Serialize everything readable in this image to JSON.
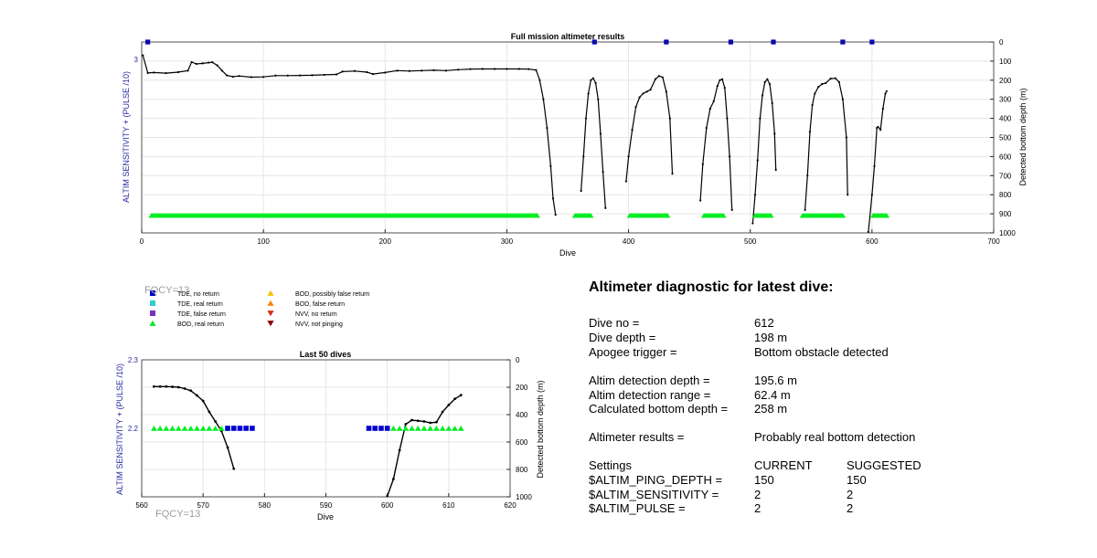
{
  "colors": {
    "blue": "#0000cc",
    "cyan": "#33cccc",
    "purple": "#7b2fbe",
    "green": "#00ee22",
    "yellow": "#f2c500",
    "orange": "#f28a00",
    "red": "#d92b1a",
    "darkred": "#8b0000",
    "line": "#000000",
    "axis": "#2929a3",
    "grid": "#e6e6e6",
    "fqcy": "#9b9b9b"
  },
  "fqcy_top": "FQCY=13",
  "fqcy_bottom": "FQCY=13",
  "legend": [
    {
      "label": "TDE, no return",
      "marker": "square",
      "color": "#0000cc"
    },
    {
      "label": "TDE, real return",
      "marker": "square",
      "color": "#33cccc"
    },
    {
      "label": "TDE, false return",
      "marker": "square",
      "color": "#7b2fbe"
    },
    {
      "label": "BOD, real return",
      "marker": "triangle-up",
      "color": "#00ee22"
    },
    {
      "label": "BOD, possibly false return",
      "marker": "triangle-up",
      "color": "#f2c500"
    },
    {
      "label": "BOD, false return",
      "marker": "triangle-up",
      "color": "#f28a00"
    },
    {
      "label": "NVV, no return",
      "marker": "triangle-down",
      "color": "#d92b1a"
    },
    {
      "label": "NVV, not pinging",
      "marker": "triangle-down",
      "color": "#8b0000"
    }
  ],
  "chart_data": [
    {
      "type": "line",
      "title": "Full mission altimeter results",
      "xlabel": "Dive",
      "ylabel_left": "ALTIM SENSITIVITY + (PULSE /10)",
      "ylabel_right": "Detected bottom depth (m)",
      "xlim": [
        0,
        700
      ],
      "x_ticks": [
        0,
        100,
        200,
        300,
        400,
        500,
        600,
        700
      ],
      "ylim_left": [
        2,
        3.1
      ],
      "y_ticks_left": [
        3
      ],
      "ylim_right": [
        1000,
        0
      ],
      "y_ticks_right": [
        0,
        100,
        200,
        300,
        400,
        500,
        600,
        700,
        800,
        900,
        1000
      ],
      "grid": true,
      "series": [
        {
          "axis": "right",
          "segments": [
            [
              [
                1,
                70
              ],
              [
                5,
                162
              ],
              [
                10,
                160
              ],
              [
                20,
                163
              ],
              [
                30,
                158
              ],
              [
                38,
                150
              ],
              [
                41,
                105
              ],
              [
                45,
                115
              ],
              [
                50,
                112
              ],
              [
                55,
                108
              ],
              [
                58,
                106
              ],
              [
                62,
                122
              ],
              [
                66,
                150
              ],
              [
                70,
                175
              ],
              [
                75,
                182
              ],
              [
                80,
                178
              ],
              [
                90,
                184
              ],
              [
                100,
                183
              ],
              [
                110,
                176
              ],
              [
                120,
                176
              ],
              [
                130,
                175
              ],
              [
                140,
                174
              ],
              [
                150,
                172
              ],
              [
                160,
                170
              ],
              [
                165,
                155
              ],
              [
                175,
                152
              ],
              [
                185,
                158
              ],
              [
                190,
                168
              ],
              [
                200,
                160
              ],
              [
                210,
                150
              ],
              [
                220,
                152
              ],
              [
                230,
                150
              ],
              [
                240,
                148
              ],
              [
                250,
                150
              ],
              [
                260,
                145
              ],
              [
                270,
                142
              ],
              [
                280,
                141
              ],
              [
                290,
                141
              ],
              [
                300,
                141
              ],
              [
                310,
                141
              ],
              [
                318,
                142
              ],
              [
                324,
                147
              ],
              [
                327,
                200
              ],
              [
                330,
                300
              ],
              [
                333,
                450
              ],
              [
                336,
                650
              ],
              [
                338,
                820
              ],
              [
                340,
                905
              ]
            ],
            [
              [
                361,
                780
              ],
              [
                363,
                600
              ],
              [
                365,
                400
              ],
              [
                367,
                270
              ],
              [
                369,
                200
              ],
              [
                371,
                190
              ],
              [
                373,
                215
              ],
              [
                375,
                300
              ],
              [
                377,
                480
              ],
              [
                379,
                680
              ],
              [
                381,
                870
              ]
            ],
            [
              [
                398,
                730
              ],
              [
                400,
                600
              ],
              [
                403,
                460
              ],
              [
                406,
                340
              ],
              [
                409,
                290
              ],
              [
                412,
                270
              ],
              [
                415,
                260
              ],
              [
                418,
                250
              ],
              [
                422,
                195
              ],
              [
                425,
                178
              ],
              [
                428,
                185
              ],
              [
                431,
                260
              ],
              [
                434,
                400
              ],
              [
                436,
                690
              ]
            ],
            [
              [
                459,
                830
              ],
              [
                461,
                640
              ],
              [
                464,
                450
              ],
              [
                467,
                350
              ],
              [
                470,
                310
              ],
              [
                473,
                230
              ],
              [
                475,
                200
              ],
              [
                477,
                195
              ],
              [
                479,
                240
              ],
              [
                481,
                400
              ],
              [
                483,
                600
              ],
              [
                485,
                880
              ]
            ],
            [
              [
                502,
                950
              ],
              [
                504,
                800
              ],
              [
                506,
                620
              ],
              [
                508,
                400
              ],
              [
                510,
                280
              ],
              [
                512,
                210
              ],
              [
                514,
                195
              ],
              [
                516,
                220
              ],
              [
                518,
                320
              ],
              [
                520,
                480
              ],
              [
                521,
                670
              ]
            ],
            [
              [
                545,
                880
              ],
              [
                547,
                700
              ],
              [
                549,
                470
              ],
              [
                551,
                330
              ],
              [
                553,
                270
              ],
              [
                556,
                235
              ],
              [
                559,
                220
              ],
              [
                562,
                215
              ],
              [
                566,
                192
              ],
              [
                570,
                190
              ],
              [
                573,
                210
              ],
              [
                576,
                300
              ],
              [
                579,
                500
              ],
              [
                580,
                800
              ]
            ],
            [
              [
                597,
                995
              ],
              [
                600,
                800
              ],
              [
                602,
                650
              ],
              [
                604,
                450
              ],
              [
                605,
                445
              ],
              [
                607,
                460
              ],
              [
                609,
                350
              ],
              [
                611,
                270
              ],
              [
                612,
                258
              ]
            ]
          ]
        }
      ],
      "markers": [
        {
          "series": "TDE, no return",
          "x": [
            5,
            372,
            431,
            484,
            519,
            576,
            600
          ],
          "y": 3.1
        },
        {
          "series": "BOD, real return",
          "x_ranges": [
            [
              8,
              325
            ],
            [
              356,
              369
            ],
            [
              401,
              432
            ],
            [
              462,
              478
            ],
            [
              504,
              517
            ],
            [
              543,
              576
            ],
            [
              601,
              612
            ]
          ],
          "y": 2.1
        }
      ]
    },
    {
      "type": "line",
      "title": "Last 50 dives",
      "xlabel": "Dive",
      "ylabel_left": "ALTIM SENSITIVITY + (PULSE /10)",
      "ylabel_right": "Detected bottom depth (m)",
      "xlim": [
        560,
        620
      ],
      "x_ticks": [
        560,
        570,
        580,
        590,
        600,
        610,
        620
      ],
      "ylim_left": [
        2.1,
        2.3
      ],
      "y_ticks_left": [
        2.2,
        2.3
      ],
      "ylim_right": [
        1000,
        0
      ],
      "y_ticks_right": [
        0,
        200,
        400,
        600,
        800,
        1000
      ],
      "grid": true,
      "series": [
        {
          "axis": "right",
          "segments": [
            [
              [
                562,
                195
              ],
              [
                563,
                195
              ],
              [
                564,
                195
              ],
              [
                565,
                197
              ],
              [
                566,
                200
              ],
              [
                567,
                210
              ],
              [
                568,
                225
              ],
              [
                569,
                260
              ],
              [
                570,
                300
              ],
              [
                571,
                380
              ],
              [
                572,
                450
              ],
              [
                573,
                520
              ],
              [
                574,
                640
              ],
              [
                575,
                795
              ]
            ],
            [
              [
                600,
                995
              ],
              [
                601,
                870
              ],
              [
                602,
                660
              ],
              [
                603,
                470
              ],
              [
                604,
                440
              ],
              [
                605,
                445
              ],
              [
                606,
                450
              ],
              [
                607,
                460
              ],
              [
                608,
                455
              ],
              [
                609,
                380
              ],
              [
                610,
                330
              ],
              [
                611,
                285
              ],
              [
                612,
                258
              ]
            ]
          ]
        }
      ],
      "markers": [
        {
          "series": "BOD, real return",
          "x": [
            562,
            563,
            564,
            565,
            566,
            567,
            568,
            569,
            570,
            571,
            572,
            573,
            574,
            601,
            602,
            603,
            604,
            605,
            606,
            607,
            608,
            609,
            610,
            611,
            612
          ],
          "y": 2.2
        },
        {
          "series": "TDE, no return",
          "x": [
            574,
            575,
            576,
            577,
            578,
            597,
            598,
            599,
            600
          ],
          "y": 2.2
        }
      ]
    }
  ],
  "diagnostic": {
    "title": "Altimeter diagnostic for latest dive:",
    "rows": [
      {
        "c0": "Dive no =",
        "c1": "612",
        "c2": ""
      },
      {
        "c0": "Dive depth =",
        "c1": "198 m",
        "c2": ""
      },
      {
        "c0": "Apogee trigger =",
        "c1": "Bottom obstacle detected",
        "c2": ""
      },
      {
        "c0": "",
        "c1": "",
        "c2": ""
      },
      {
        "c0": "Altim detection depth =",
        "c1": "195.6 m",
        "c2": ""
      },
      {
        "c0": "Altim detection range =",
        "c1": "62.4 m",
        "c2": ""
      },
      {
        "c0": "Calculated bottom depth =",
        "c1": "258 m",
        "c2": ""
      },
      {
        "c0": "",
        "c1": "",
        "c2": ""
      },
      {
        "c0": "Altimeter results =",
        "c1": "Probably real bottom detection",
        "c2": ""
      },
      {
        "c0": "",
        "c1": "",
        "c2": ""
      },
      {
        "c0": "Settings",
        "c1": "CURRENT",
        "c2": "SUGGESTED"
      },
      {
        "c0": "$ALTIM_PING_DEPTH =",
        "c1": "150",
        "c2": "150"
      },
      {
        "c0": "$ALTIM_SENSITIVITY =",
        "c1": "2",
        "c2": "2"
      },
      {
        "c0": "$ALTIM_PULSE =",
        "c1": "2",
        "c2": "2"
      }
    ]
  }
}
